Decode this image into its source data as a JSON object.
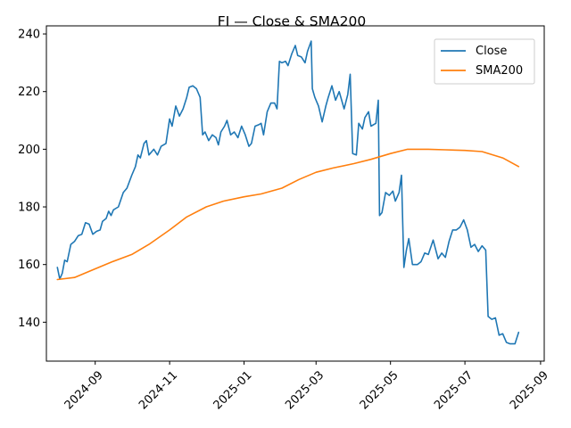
{
  "chart_data": {
    "type": "line",
    "title": "FI — Close & SMA200",
    "xlabel": "",
    "ylabel": "",
    "legend_position": "top-right",
    "grid": false,
    "xlim": [
      "2024-07-23",
      "2025-09-04"
    ],
    "ylim": [
      126.5,
      242.8
    ],
    "x_ticks": [
      "2024-09-01",
      "2024-11-01",
      "2025-01-01",
      "2025-03-01",
      "2025-05-01",
      "2025-07-01",
      "2025-09-01"
    ],
    "x_tick_labels": [
      "2024-09",
      "2024-11",
      "2025-01",
      "2025-03",
      "2025-05",
      "2025-07",
      "2025-09"
    ],
    "y_ticks": [
      140,
      160,
      180,
      200,
      220,
      240
    ],
    "y_tick_labels": [
      "140",
      "160",
      "180",
      "200",
      "220",
      "240"
    ],
    "series": [
      {
        "name": "Close",
        "color": "#1f77b4",
        "points": [
          [
            "2024-08-01",
            159
          ],
          [
            "2024-08-03",
            155
          ],
          [
            "2024-08-05",
            157
          ],
          [
            "2024-08-07",
            161.5
          ],
          [
            "2024-08-09",
            161
          ],
          [
            "2024-08-12",
            167
          ],
          [
            "2024-08-15",
            168
          ],
          [
            "2024-08-18",
            170
          ],
          [
            "2024-08-21",
            170.5
          ],
          [
            "2024-08-24",
            174.5
          ],
          [
            "2024-08-27",
            174
          ],
          [
            "2024-08-30",
            170.5
          ],
          [
            "2024-09-02",
            171.5
          ],
          [
            "2024-09-05",
            172
          ],
          [
            "2024-09-07",
            175
          ],
          [
            "2024-09-10",
            176
          ],
          [
            "2024-09-12",
            178.5
          ],
          [
            "2024-09-14",
            177
          ],
          [
            "2024-09-16",
            179
          ],
          [
            "2024-09-20",
            180
          ],
          [
            "2024-09-24",
            185
          ],
          [
            "2024-09-27",
            186.5
          ],
          [
            "2024-10-01",
            191
          ],
          [
            "2024-10-04",
            194
          ],
          [
            "2024-10-06",
            198
          ],
          [
            "2024-10-08",
            197
          ],
          [
            "2024-10-11",
            202
          ],
          [
            "2024-10-13",
            203
          ],
          [
            "2024-10-15",
            198
          ],
          [
            "2024-10-19",
            200
          ],
          [
            "2024-10-22",
            198
          ],
          [
            "2024-10-25",
            201
          ],
          [
            "2024-10-29",
            202
          ],
          [
            "2024-11-01",
            210.5
          ],
          [
            "2024-11-03",
            208
          ],
          [
            "2024-11-06",
            215
          ],
          [
            "2024-11-09",
            211.5
          ],
          [
            "2024-11-12",
            214
          ],
          [
            "2024-11-15",
            218
          ],
          [
            "2024-11-17",
            221.5
          ],
          [
            "2024-11-20",
            222
          ],
          [
            "2024-11-23",
            221
          ],
          [
            "2024-11-26",
            218
          ],
          [
            "2024-11-28",
            205
          ],
          [
            "2024-11-30",
            206
          ],
          [
            "2024-12-03",
            203
          ],
          [
            "2024-12-06",
            205
          ],
          [
            "2024-12-09",
            204
          ],
          [
            "2024-12-11",
            201.5
          ],
          [
            "2024-12-13",
            206
          ],
          [
            "2024-12-16",
            208
          ],
          [
            "2024-12-18",
            210
          ],
          [
            "2024-12-21",
            205
          ],
          [
            "2024-12-24",
            206
          ],
          [
            "2024-12-27",
            204
          ],
          [
            "2024-12-30",
            208
          ],
          [
            "2025-01-02",
            205
          ],
          [
            "2025-01-05",
            201
          ],
          [
            "2025-01-07",
            202
          ],
          [
            "2025-01-10",
            208
          ],
          [
            "2025-01-13",
            208.5
          ],
          [
            "2025-01-15",
            209
          ],
          [
            "2025-01-17",
            205
          ],
          [
            "2025-01-20",
            213
          ],
          [
            "2025-01-23",
            216
          ],
          [
            "2025-01-26",
            216
          ],
          [
            "2025-01-28",
            214
          ],
          [
            "2025-01-30",
            230.5
          ],
          [
            "2025-02-01",
            230
          ],
          [
            "2025-02-04",
            230.5
          ],
          [
            "2025-02-06",
            229
          ],
          [
            "2025-02-09",
            233
          ],
          [
            "2025-02-12",
            236
          ],
          [
            "2025-02-14",
            232.5
          ],
          [
            "2025-02-17",
            232
          ],
          [
            "2025-02-20",
            230
          ],
          [
            "2025-02-22",
            234
          ],
          [
            "2025-02-25",
            237.5
          ],
          [
            "2025-02-26",
            221
          ],
          [
            "2025-02-28",
            218
          ],
          [
            "2025-03-03",
            215
          ],
          [
            "2025-03-06",
            209.5
          ],
          [
            "2025-03-09",
            215
          ],
          [
            "2025-03-11",
            218
          ],
          [
            "2025-03-14",
            222
          ],
          [
            "2025-03-17",
            217
          ],
          [
            "2025-03-20",
            220
          ],
          [
            "2025-03-24",
            214
          ],
          [
            "2025-03-27",
            219
          ],
          [
            "2025-03-29",
            226
          ],
          [
            "2025-03-31",
            198.5
          ],
          [
            "2025-04-03",
            198
          ],
          [
            "2025-04-05",
            209
          ],
          [
            "2025-04-08",
            207
          ],
          [
            "2025-04-10",
            211
          ],
          [
            "2025-04-13",
            213
          ],
          [
            "2025-04-15",
            208
          ],
          [
            "2025-04-19",
            209
          ],
          [
            "2025-04-21",
            217
          ],
          [
            "2025-04-22",
            177
          ],
          [
            "2025-04-24",
            178
          ],
          [
            "2025-04-27",
            185
          ],
          [
            "2025-04-30",
            184
          ],
          [
            "2025-05-03",
            185.5
          ],
          [
            "2025-05-05",
            182
          ],
          [
            "2025-05-08",
            185
          ],
          [
            "2025-05-10",
            191
          ],
          [
            "2025-05-12",
            159
          ],
          [
            "2025-05-14",
            165
          ],
          [
            "2025-05-16",
            169
          ],
          [
            "2025-05-19",
            160
          ],
          [
            "2025-05-23",
            160
          ],
          [
            "2025-05-26",
            161
          ],
          [
            "2025-05-29",
            164
          ],
          [
            "2025-06-01",
            163.5
          ],
          [
            "2025-06-05",
            168.5
          ],
          [
            "2025-06-09",
            162
          ],
          [
            "2025-06-12",
            164
          ],
          [
            "2025-06-15",
            162.5
          ],
          [
            "2025-06-18",
            168
          ],
          [
            "2025-06-21",
            172
          ],
          [
            "2025-06-24",
            172
          ],
          [
            "2025-06-27",
            173
          ],
          [
            "2025-06-30",
            175.5
          ],
          [
            "2025-07-03",
            172
          ],
          [
            "2025-07-06",
            166
          ],
          [
            "2025-07-09",
            167
          ],
          [
            "2025-07-12",
            164.5
          ],
          [
            "2025-07-15",
            166.5
          ],
          [
            "2025-07-18",
            165
          ],
          [
            "2025-07-20",
            142
          ],
          [
            "2025-07-23",
            141
          ],
          [
            "2025-07-26",
            141.5
          ],
          [
            "2025-07-29",
            135.5
          ],
          [
            "2025-08-01",
            136
          ],
          [
            "2025-08-04",
            133
          ],
          [
            "2025-08-07",
            132.5
          ],
          [
            "2025-08-11",
            132.5
          ],
          [
            "2025-08-14",
            136.5
          ]
        ]
      },
      {
        "name": "SMA200",
        "color": "#ff7f0e",
        "points": [
          [
            "2024-08-01",
            154.8
          ],
          [
            "2024-08-15",
            155.5
          ],
          [
            "2024-09-01",
            158.5
          ],
          [
            "2024-09-15",
            161
          ],
          [
            "2024-10-01",
            163.5
          ],
          [
            "2024-10-15",
            167
          ],
          [
            "2024-11-01",
            172
          ],
          [
            "2024-11-15",
            176.5
          ],
          [
            "2024-12-01",
            180
          ],
          [
            "2024-12-15",
            182
          ],
          [
            "2025-01-01",
            183.5
          ],
          [
            "2025-01-15",
            184.5
          ],
          [
            "2025-02-01",
            186.5
          ],
          [
            "2025-02-15",
            189.5
          ],
          [
            "2025-03-01",
            192
          ],
          [
            "2025-03-15",
            193.5
          ],
          [
            "2025-04-01",
            195
          ],
          [
            "2025-04-15",
            196.5
          ],
          [
            "2025-05-01",
            198.5
          ],
          [
            "2025-05-15",
            200
          ],
          [
            "2025-06-01",
            200
          ],
          [
            "2025-06-15",
            199.8
          ],
          [
            "2025-07-01",
            199.6
          ],
          [
            "2025-07-15",
            199.2
          ],
          [
            "2025-08-01",
            197
          ],
          [
            "2025-08-14",
            194
          ]
        ]
      }
    ]
  }
}
